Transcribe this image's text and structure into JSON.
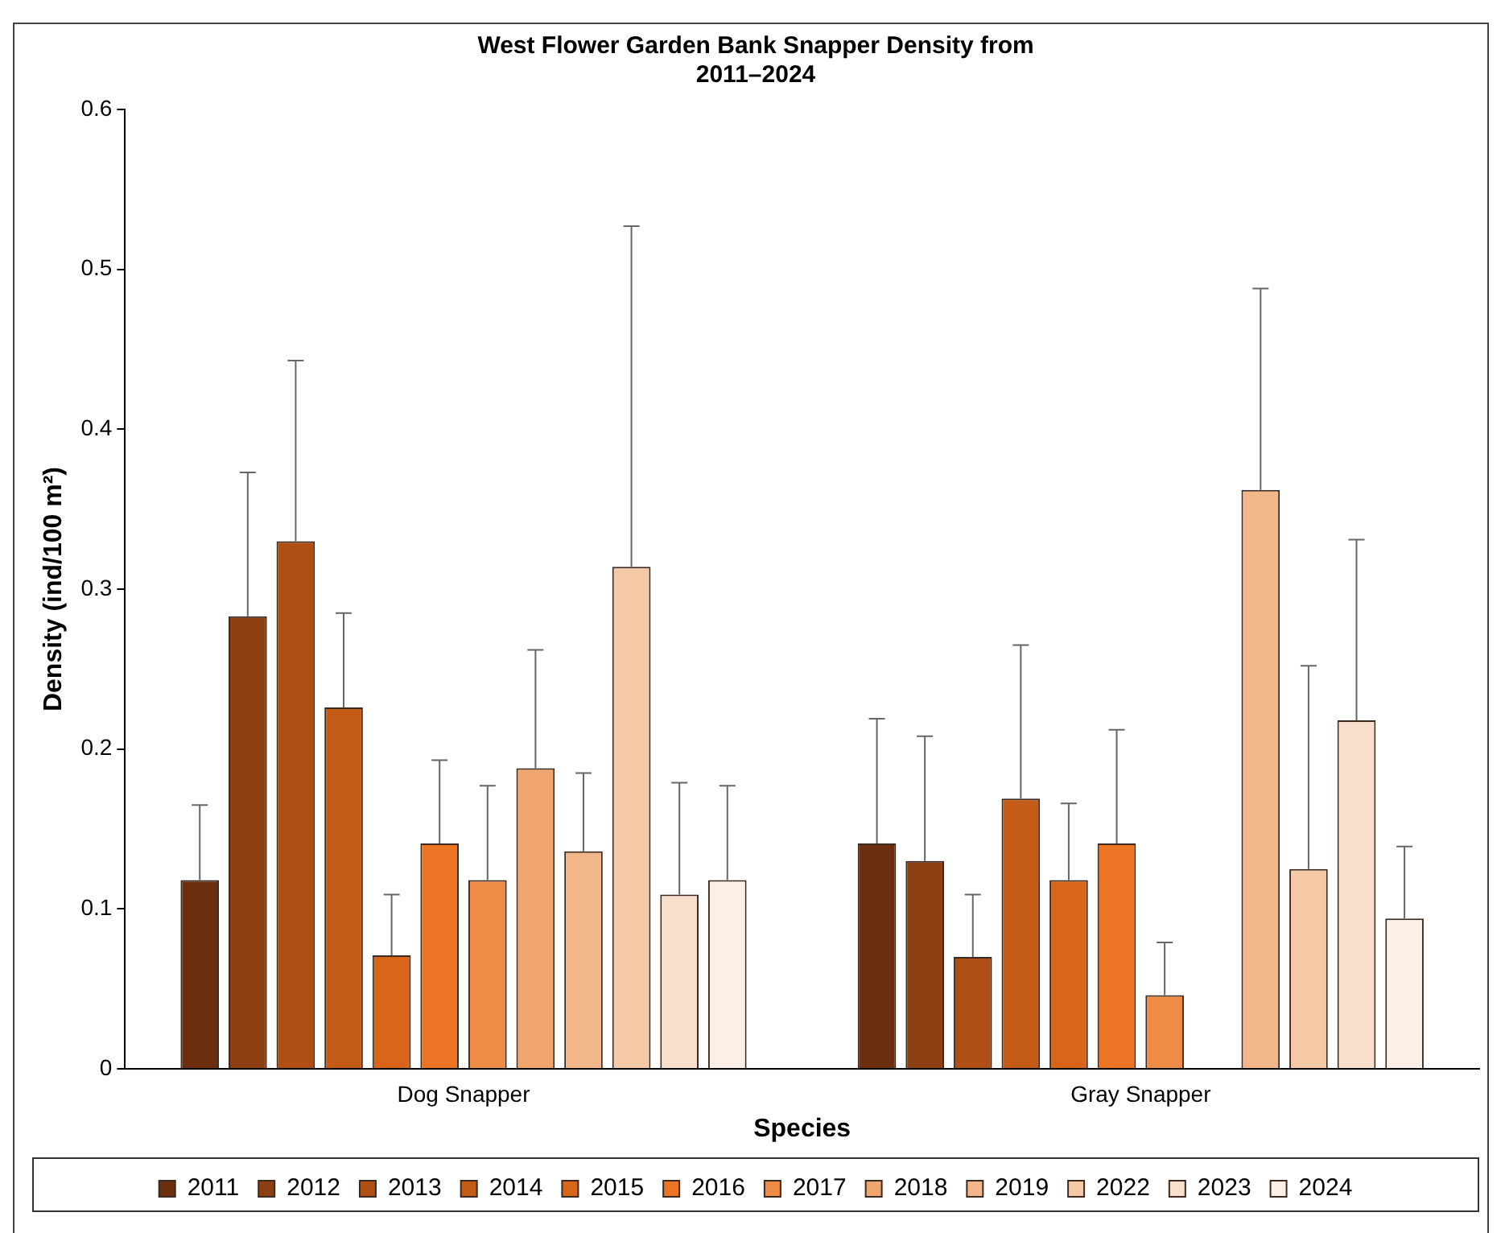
{
  "chart_data": {
    "type": "bar",
    "title": "West Flower Garden Bank Snapper Density from\n2011–2024",
    "xlabel": "Species",
    "ylabel": "Density (ind/100 m²)",
    "categories": [
      "Dog Snapper",
      "Gray Snapper"
    ],
    "series": [
      {
        "name": "2011",
        "color": "#6b2f0f",
        "values": [
          0.118,
          0.141
        ],
        "errors": [
          [
            0.118,
            0.165
          ],
          [
            0.141,
            0.219
          ]
        ]
      },
      {
        "name": "2012",
        "color": "#8e3f12",
        "values": [
          0.283,
          0.13
        ],
        "errors": [
          [
            0.283,
            0.373
          ],
          [
            0.13,
            0.208
          ]
        ]
      },
      {
        "name": "2013",
        "color": "#b04f15",
        "values": [
          0.33,
          0.07
        ],
        "errors": [
          [
            0.33,
            0.443
          ],
          [
            0.07,
            0.109
          ]
        ]
      },
      {
        "name": "2014",
        "color": "#c45c17",
        "values": [
          0.226,
          0.169
        ],
        "errors": [
          [
            0.226,
            0.285
          ],
          [
            0.169,
            0.265
          ]
        ]
      },
      {
        "name": "2015",
        "color": "#d9651a",
        "values": [
          0.071,
          0.118
        ],
        "errors": [
          [
            0.071,
            0.109
          ],
          [
            0.118,
            0.166
          ]
        ]
      },
      {
        "name": "2016",
        "color": "#ec7424",
        "values": [
          0.141,
          0.141
        ],
        "errors": [
          [
            0.141,
            0.193
          ],
          [
            0.141,
            0.212
          ]
        ]
      },
      {
        "name": "2017",
        "color": "#ee8c47",
        "values": [
          0.118,
          0.046
        ],
        "errors": [
          [
            0.118,
            0.177
          ],
          [
            0.046,
            0.079
          ]
        ]
      },
      {
        "name": "2018",
        "color": "#f0a46e",
        "values": [
          0.188,
          null
        ],
        "errors": [
          [
            0.188,
            0.262
          ],
          null
        ]
      },
      {
        "name": "2019",
        "color": "#f2b68a",
        "values": [
          0.136,
          0.362
        ],
        "errors": [
          [
            0.136,
            0.185
          ],
          [
            0.362,
            0.488
          ]
        ]
      },
      {
        "name": "2022",
        "color": "#f6c9a6",
        "values": [
          0.314,
          0.125
        ],
        "errors": [
          [
            0.314,
            0.527
          ],
          [
            0.125,
            0.252
          ]
        ]
      },
      {
        "name": "2023",
        "color": "#f9dfcb",
        "values": [
          0.109,
          0.218
        ],
        "errors": [
          [
            0.109,
            0.179
          ],
          [
            0.218,
            0.331
          ]
        ]
      },
      {
        "name": "2024",
        "color": "#fcefe6",
        "values": [
          0.118,
          0.094
        ],
        "errors": [
          [
            0.118,
            0.177
          ],
          [
            0.094,
            0.139
          ]
        ]
      }
    ],
    "ylim": [
      0,
      0.6
    ],
    "yticks": [
      0,
      0.1,
      0.2,
      0.3,
      0.4,
      0.5,
      0.6
    ],
    "grid": false,
    "legend": "bottom"
  }
}
